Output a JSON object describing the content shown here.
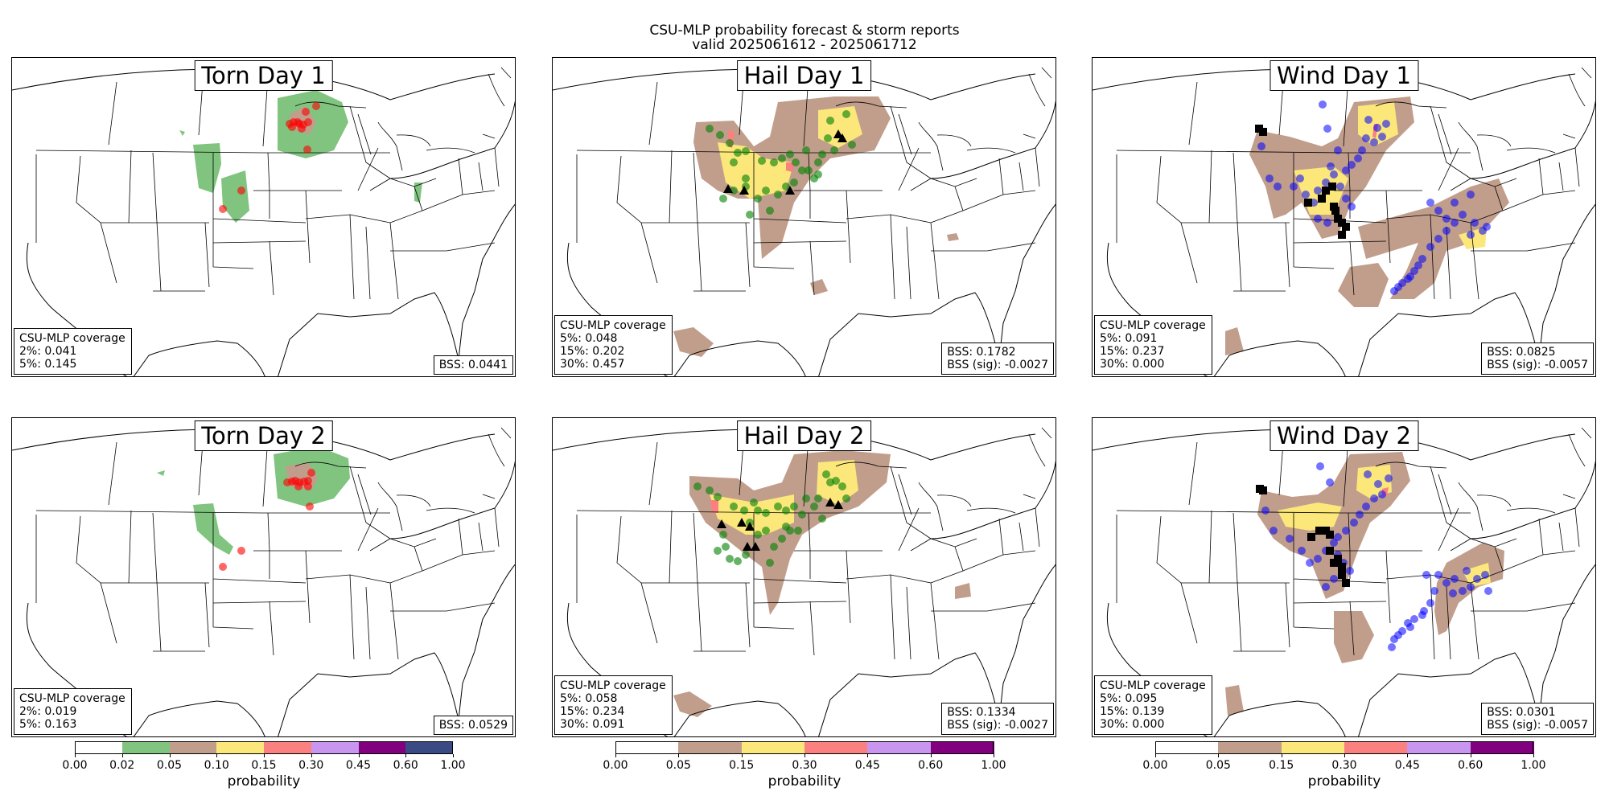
{
  "figure": {
    "title_line1": "CSU-MLP probability forecast & storm reports",
    "title_line2": "valid 2025061612 - 2025061712"
  },
  "panels": [
    {
      "id": "torn1",
      "title": "Torn Day 1",
      "coverage_title": "CSU-MLP coverage",
      "coverage_lines": [
        "2%: 0.041",
        "5%: 0.145"
      ],
      "bss_lines": [
        "BSS: 0.0441"
      ]
    },
    {
      "id": "hail1",
      "title": "Hail Day 1",
      "coverage_title": "CSU-MLP coverage",
      "coverage_lines": [
        "5%: 0.048",
        "15%: 0.202",
        "30%: 0.457"
      ],
      "bss_lines": [
        "BSS: 0.1782",
        "BSS (sig): -0.0027"
      ]
    },
    {
      "id": "wind1",
      "title": "Wind Day 1",
      "coverage_title": "CSU-MLP coverage",
      "coverage_lines": [
        "5%: 0.091",
        "15%: 0.237",
        "30%: 0.000"
      ],
      "bss_lines": [
        "BSS: 0.0825",
        "BSS (sig): -0.0057"
      ]
    },
    {
      "id": "torn2",
      "title": "Torn Day 2",
      "coverage_title": "CSU-MLP coverage",
      "coverage_lines": [
        "2%: 0.019",
        "5%: 0.163"
      ],
      "bss_lines": [
        "BSS: 0.0529"
      ]
    },
    {
      "id": "hail2",
      "title": "Hail Day 2",
      "coverage_title": "CSU-MLP coverage",
      "coverage_lines": [
        "5%: 0.058",
        "15%: 0.234",
        "30%: 0.091"
      ],
      "bss_lines": [
        "BSS: 0.1334",
        "BSS (sig): -0.0027"
      ]
    },
    {
      "id": "wind2",
      "title": "Wind Day 2",
      "coverage_title": "CSU-MLP coverage",
      "coverage_lines": [
        "5%: 0.095",
        "15%: 0.139",
        "30%: 0.000"
      ],
      "bss_lines": [
        "BSS: 0.0301",
        "BSS (sig): -0.0057"
      ]
    }
  ],
  "colorbars": [
    {
      "label": "probability",
      "ticks": [
        "0.00",
        "0.02",
        "0.05",
        "0.10",
        "0.15",
        "0.30",
        "0.45",
        "0.60",
        "1.00"
      ],
      "colors": [
        "#ffffff",
        "#80c480",
        "#c19e8c",
        "#fbe77a",
        "#fb8080",
        "#c896ee",
        "#800080",
        "#3a4a85"
      ]
    },
    {
      "label": "probability",
      "ticks": [
        "0.00",
        "0.05",
        "0.15",
        "0.30",
        "0.45",
        "0.60",
        "1.00"
      ],
      "colors": [
        "#ffffff",
        "#c19e8c",
        "#fbe77a",
        "#fb8080",
        "#c896ee",
        "#800080"
      ]
    },
    {
      "label": "probability",
      "ticks": [
        "0.00",
        "0.05",
        "0.15",
        "0.30",
        "0.45",
        "0.60",
        "1.00"
      ],
      "colors": [
        "#ffffff",
        "#c19e8c",
        "#fbe77a",
        "#fb8080",
        "#c896ee",
        "#800080"
      ]
    }
  ],
  "legend_colors": {
    "tornado_report": "#ff0000",
    "hail_report": "#008000",
    "wind_report": "#0000ff",
    "significant_report": "#000000"
  }
}
